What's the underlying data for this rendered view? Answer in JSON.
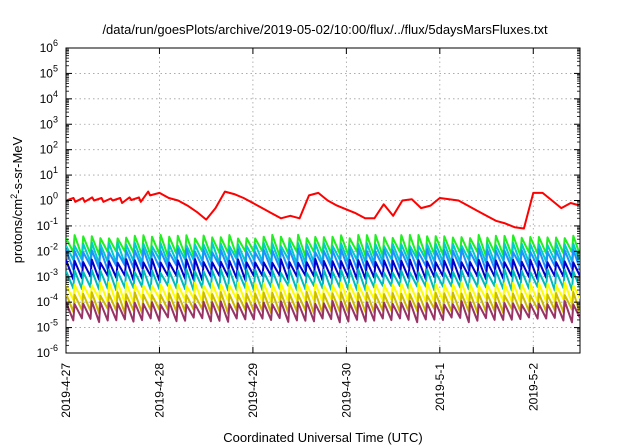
{
  "chart_data": {
    "type": "line",
    "title": "/data/run/goesPlots/archive/2019-05-02/10:00/flux/../flux/5daysMarsFluxes.txt",
    "xlabel": "Coordinated Universal Time (UTC)",
    "ylabel": {
      "prefix": "protons/cm",
      "sup": "2",
      "suffix": "-s-sr-MeV"
    },
    "yscale": "log",
    "ylim_exp": [
      -6,
      6
    ],
    "yticks": [
      {
        "base": "10",
        "exp": "-6"
      },
      {
        "base": "10",
        "exp": "-5"
      },
      {
        "base": "10",
        "exp": "-4"
      },
      {
        "base": "10",
        "exp": "-3"
      },
      {
        "base": "10",
        "exp": "-2"
      },
      {
        "base": "10",
        "exp": "-1"
      },
      {
        "base": "10",
        "exp": "0"
      },
      {
        "base": "10",
        "exp": "1"
      },
      {
        "base": "10",
        "exp": "2"
      },
      {
        "base": "10",
        "exp": "3"
      },
      {
        "base": "10",
        "exp": "4"
      },
      {
        "base": "10",
        "exp": "5"
      },
      {
        "base": "10",
        "exp": "6"
      }
    ],
    "xlim_days": [
      0,
      5.5
    ],
    "xticks": [
      {
        "day": 0,
        "label": "2019-4-27"
      },
      {
        "day": 1,
        "label": "2019-4-28"
      },
      {
        "day": 2,
        "label": "2019-4-29"
      },
      {
        "day": 3,
        "label": "2019-4-30"
      },
      {
        "day": 4,
        "label": "2019-5-1"
      },
      {
        "day": 5,
        "label": "2019-5-2"
      }
    ],
    "grid": true,
    "series": [
      {
        "color": "#ff0000",
        "x": [
          0,
          0.08,
          0.1,
          0.18,
          0.2,
          0.28,
          0.3,
          0.38,
          0.4,
          0.48,
          0.5,
          0.58,
          0.6,
          0.68,
          0.7,
          0.78,
          0.8,
          0.88,
          0.9,
          1.0,
          1.1,
          1.2,
          1.3,
          1.4,
          1.5,
          1.6,
          1.7,
          1.8,
          1.9,
          2.0,
          2.1,
          2.2,
          2.3,
          2.4,
          2.5,
          2.6,
          2.7,
          2.8,
          2.9,
          3.0,
          3.1,
          3.2,
          3.3,
          3.4,
          3.5,
          3.6,
          3.7,
          3.8,
          3.9,
          4.0,
          4.1,
          4.2,
          4.3,
          4.4,
          4.5,
          4.6,
          4.7,
          4.8,
          4.9,
          5.0,
          5.1,
          5.2,
          5.3,
          5.4,
          5.5
        ],
        "y_log10": [
          0.0,
          0.1,
          -0.05,
          0.1,
          -0.05,
          0.12,
          0.0,
          0.1,
          -0.05,
          0.08,
          0.0,
          0.1,
          -0.1,
          0.12,
          0.02,
          0.12,
          -0.05,
          0.35,
          0.2,
          0.3,
          0.1,
          0.0,
          -0.2,
          -0.45,
          -0.75,
          -0.3,
          0.35,
          0.25,
          0.1,
          -0.1,
          -0.3,
          -0.5,
          -0.7,
          -0.6,
          -0.7,
          0.2,
          0.3,
          0.0,
          -0.2,
          -0.35,
          -0.5,
          -0.7,
          -0.7,
          -0.15,
          -0.6,
          0.0,
          0.05,
          -0.3,
          -0.2,
          0.1,
          0.05,
          0.0,
          -0.2,
          -0.4,
          -0.6,
          -0.8,
          -0.9,
          -1.05,
          -1.1,
          0.3,
          0.3,
          0.0,
          -0.3,
          -0.1,
          -0.2
        ]
      },
      {
        "color": "#22ee22",
        "base_log10": -1.65
      },
      {
        "color": "#00cccc",
        "base_log10": -1.95
      },
      {
        "color": "#1e90ff",
        "base_log10": -2.2
      },
      {
        "color": "#0000cc",
        "base_log10": -2.6
      },
      {
        "color": "#00bbbb",
        "base_log10": -3.0
      },
      {
        "color": "#ffff00",
        "base_log10": -3.5
      },
      {
        "color": "#ccbb00",
        "base_log10": -3.9
      },
      {
        "color": "#993366",
        "base_log10": -4.25
      }
    ]
  }
}
